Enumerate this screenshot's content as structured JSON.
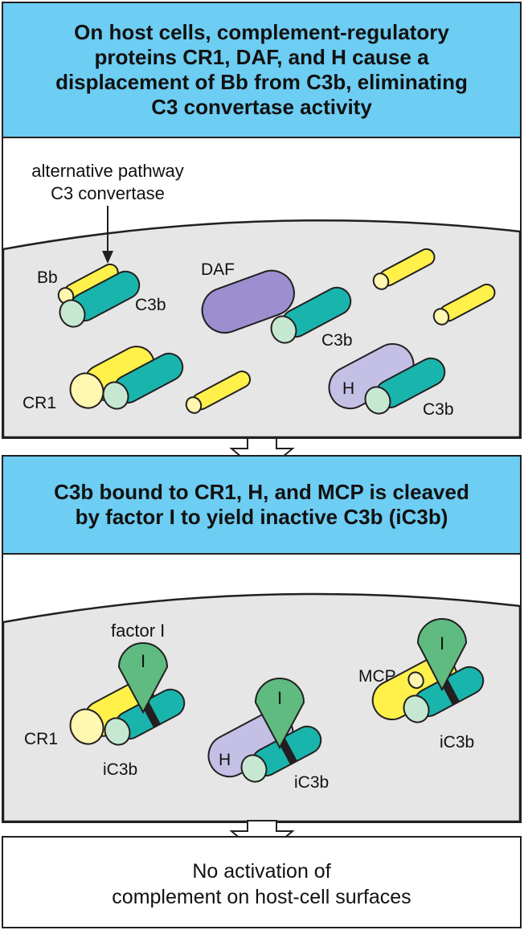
{
  "panel1": {
    "title_lines": [
      "On host cells, complement-regulatory",
      "proteins CR1, DAF, and H cause a",
      "displacement of Bb from C3b, eliminating",
      "C3 convertase activity"
    ],
    "annotation_lines": [
      "alternative pathway",
      "C3 convertase"
    ],
    "labels": {
      "bb": "Bb",
      "c3b_a": "C3b",
      "daf": "DAF",
      "c3b_b": "C3b",
      "cr1": "CR1",
      "h": "H",
      "c3b_c": "C3b"
    }
  },
  "panel2": {
    "title_lines": [
      "C3b bound to CR1, H, and MCP is cleaved",
      "by factor I to yield inactive C3b (iC3b)"
    ],
    "labels": {
      "factor_i": "factor I",
      "i_1": "I",
      "cr1": "CR1",
      "ic3b_1": "iC3b",
      "i_2": "I",
      "h": "H",
      "ic3b_2": "iC3b",
      "mcp": "MCP",
      "i_3": "I",
      "ic3b_3": "iC3b"
    }
  },
  "panel3": {
    "text_lines": [
      "No activation of",
      "complement on host-cell surfaces"
    ]
  },
  "colors": {
    "header_bg": "#6dcdf2",
    "membrane": "#e6e6e6",
    "bb_yellow": "#fff14a",
    "c3b_teal": "#19b5ad",
    "c3b_face": "#c6e8d2",
    "daf_purple": "#9b8fd0",
    "h_lavender": "#c3bfe5",
    "cr1_face": "#fff6b0",
    "factor_i_green": "#5fbb80",
    "outline": "#231f20"
  }
}
